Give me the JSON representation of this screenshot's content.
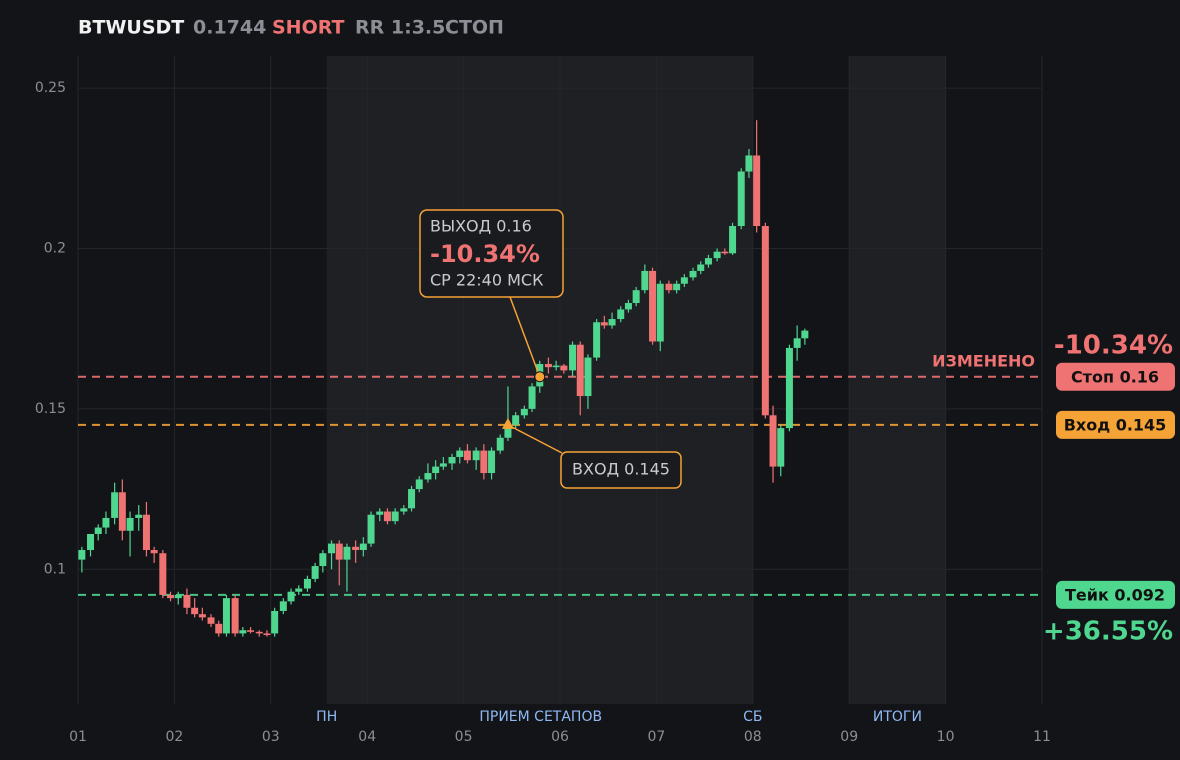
{
  "header": {
    "symbol": "BTWUSDT",
    "price": "0.1744",
    "side": "SHORT",
    "rr": "RR 1:3.5",
    "status": "СТОП"
  },
  "chart_data": {
    "type": "candlestick",
    "xlim": [
      1,
      11
    ],
    "ylim": [
      0.058,
      0.26
    ],
    "xticks": [
      {
        "value": 1,
        "label": "01"
      },
      {
        "value": 2,
        "label": "02"
      },
      {
        "value": 3,
        "label": "03"
      },
      {
        "value": 4,
        "label": "04"
      },
      {
        "value": 5,
        "label": "05"
      },
      {
        "value": 6,
        "label": "06"
      },
      {
        "value": 7,
        "label": "07"
      },
      {
        "value": 8,
        "label": "08"
      },
      {
        "value": 9,
        "label": "09"
      },
      {
        "value": 10,
        "label": "10"
      },
      {
        "value": 11,
        "label": "11"
      }
    ],
    "yticks": [
      0.1,
      0.15,
      0.2,
      0.25
    ],
    "grid": true,
    "up_color": "#4fd68f",
    "down_color": "#f07373",
    "regions": [
      {
        "from": 3.58,
        "to": 8
      },
      {
        "from": 9,
        "to": 10
      }
    ],
    "sessions": [
      {
        "x": 3.58,
        "label": "ПН"
      },
      {
        "x": 5.8,
        "label": "ПРИЕМ СЕТАПОВ"
      },
      {
        "x": 8,
        "label": "СБ"
      },
      {
        "x": 9.5,
        "label": "ИТОГИ"
      }
    ],
    "levels": [
      {
        "value": 0.16,
        "label": "Стоп 0.16",
        "color": "#f07373",
        "note": "ИЗМЕНЕНО",
        "pct": "-10.34%"
      },
      {
        "value": 0.145,
        "label": "Вход 0.145",
        "color": "#f5a236"
      },
      {
        "value": 0.092,
        "label": "Тейк 0.092",
        "color": "#4fd68f",
        "pct": "+36.55%"
      }
    ],
    "entry": {
      "x": 5.46,
      "y": 0.145,
      "label": "ВХОД 0.145"
    },
    "exit": {
      "x": 5.79,
      "y": 0.16,
      "label": "ВЫХОД 0.16",
      "pct": "-10.34%",
      "time": "СР 22:40 МСК"
    },
    "candles": [
      {
        "x": 1.04,
        "o": 0.103,
        "h": 0.107,
        "l": 0.099,
        "c": 0.106
      },
      {
        "x": 1.13,
        "o": 0.106,
        "h": 0.111,
        "l": 0.104,
        "c": 0.111
      },
      {
        "x": 1.21,
        "o": 0.111,
        "h": 0.114,
        "l": 0.109,
        "c": 0.113
      },
      {
        "x": 1.29,
        "o": 0.113,
        "h": 0.118,
        "l": 0.111,
        "c": 0.116
      },
      {
        "x": 1.38,
        "o": 0.116,
        "h": 0.127,
        "l": 0.114,
        "c": 0.124
      },
      {
        "x": 1.46,
        "o": 0.124,
        "h": 0.128,
        "l": 0.109,
        "c": 0.112
      },
      {
        "x": 1.54,
        "o": 0.112,
        "h": 0.118,
        "l": 0.104,
        "c": 0.116
      },
      {
        "x": 1.63,
        "o": 0.116,
        "h": 0.12,
        "l": 0.112,
        "c": 0.117
      },
      {
        "x": 1.71,
        "o": 0.117,
        "h": 0.121,
        "l": 0.104,
        "c": 0.106
      },
      {
        "x": 1.79,
        "o": 0.106,
        "h": 0.107,
        "l": 0.102,
        "c": 0.105
      },
      {
        "x": 1.88,
        "o": 0.105,
        "h": 0.106,
        "l": 0.091,
        "c": 0.092
      },
      {
        "x": 1.96,
        "o": 0.092,
        "h": 0.093,
        "l": 0.09,
        "c": 0.091
      },
      {
        "x": 2.04,
        "o": 0.091,
        "h": 0.093,
        "l": 0.089,
        "c": 0.092
      },
      {
        "x": 2.13,
        "o": 0.092,
        "h": 0.094,
        "l": 0.086,
        "c": 0.088
      },
      {
        "x": 2.21,
        "o": 0.088,
        "h": 0.091,
        "l": 0.085,
        "c": 0.086
      },
      {
        "x": 2.29,
        "o": 0.086,
        "h": 0.088,
        "l": 0.084,
        "c": 0.085
      },
      {
        "x": 2.38,
        "o": 0.085,
        "h": 0.086,
        "l": 0.082,
        "c": 0.083
      },
      {
        "x": 2.46,
        "o": 0.083,
        "h": 0.084,
        "l": 0.079,
        "c": 0.08
      },
      {
        "x": 2.54,
        "o": 0.08,
        "h": 0.092,
        "l": 0.079,
        "c": 0.091
      },
      {
        "x": 2.63,
        "o": 0.091,
        "h": 0.092,
        "l": 0.079,
        "c": 0.08
      },
      {
        "x": 2.71,
        "o": 0.08,
        "h": 0.082,
        "l": 0.079,
        "c": 0.081
      },
      {
        "x": 2.79,
        "o": 0.081,
        "h": 0.082,
        "l": 0.08,
        "c": 0.0805
      },
      {
        "x": 2.88,
        "o": 0.0805,
        "h": 0.081,
        "l": 0.079,
        "c": 0.08
      },
      {
        "x": 2.96,
        "o": 0.08,
        "h": 0.081,
        "l": 0.079,
        "c": 0.0795
      },
      {
        "x": 3.04,
        "o": 0.08,
        "h": 0.088,
        "l": 0.079,
        "c": 0.087
      },
      {
        "x": 3.13,
        "o": 0.087,
        "h": 0.091,
        "l": 0.086,
        "c": 0.09
      },
      {
        "x": 3.21,
        "o": 0.09,
        "h": 0.094,
        "l": 0.089,
        "c": 0.093
      },
      {
        "x": 3.29,
        "o": 0.093,
        "h": 0.095,
        "l": 0.092,
        "c": 0.094
      },
      {
        "x": 3.38,
        "o": 0.094,
        "h": 0.098,
        "l": 0.093,
        "c": 0.097
      },
      {
        "x": 3.46,
        "o": 0.097,
        "h": 0.102,
        "l": 0.096,
        "c": 0.101
      },
      {
        "x": 3.54,
        "o": 0.101,
        "h": 0.106,
        "l": 0.099,
        "c": 0.105
      },
      {
        "x": 3.63,
        "o": 0.105,
        "h": 0.109,
        "l": 0.1,
        "c": 0.108
      },
      {
        "x": 3.71,
        "o": 0.108,
        "h": 0.109,
        "l": 0.095,
        "c": 0.103
      },
      {
        "x": 3.79,
        "o": 0.103,
        "h": 0.108,
        "l": 0.093,
        "c": 0.107
      },
      {
        "x": 3.88,
        "o": 0.107,
        "h": 0.109,
        "l": 0.102,
        "c": 0.106
      },
      {
        "x": 3.96,
        "o": 0.106,
        "h": 0.11,
        "l": 0.104,
        "c": 0.108
      },
      {
        "x": 4.04,
        "o": 0.108,
        "h": 0.118,
        "l": 0.107,
        "c": 0.117
      },
      {
        "x": 4.13,
        "o": 0.117,
        "h": 0.119,
        "l": 0.115,
        "c": 0.118
      },
      {
        "x": 4.21,
        "o": 0.118,
        "h": 0.119,
        "l": 0.114,
        "c": 0.115
      },
      {
        "x": 4.29,
        "o": 0.115,
        "h": 0.119,
        "l": 0.114,
        "c": 0.118
      },
      {
        "x": 4.38,
        "o": 0.118,
        "h": 0.12,
        "l": 0.117,
        "c": 0.119
      },
      {
        "x": 4.46,
        "o": 0.119,
        "h": 0.126,
        "l": 0.118,
        "c": 0.125
      },
      {
        "x": 4.54,
        "o": 0.125,
        "h": 0.129,
        "l": 0.124,
        "c": 0.128
      },
      {
        "x": 4.63,
        "o": 0.128,
        "h": 0.133,
        "l": 0.127,
        "c": 0.13
      },
      {
        "x": 4.71,
        "o": 0.13,
        "h": 0.134,
        "l": 0.128,
        "c": 0.132
      },
      {
        "x": 4.79,
        "o": 0.132,
        "h": 0.135,
        "l": 0.131,
        "c": 0.133
      },
      {
        "x": 4.88,
        "o": 0.133,
        "h": 0.136,
        "l": 0.131,
        "c": 0.135
      },
      {
        "x": 4.96,
        "o": 0.135,
        "h": 0.138,
        "l": 0.133,
        "c": 0.137
      },
      {
        "x": 5.04,
        "o": 0.137,
        "h": 0.139,
        "l": 0.133,
        "c": 0.134
      },
      {
        "x": 5.13,
        "o": 0.134,
        "h": 0.138,
        "l": 0.131,
        "c": 0.137
      },
      {
        "x": 5.21,
        "o": 0.137,
        "h": 0.139,
        "l": 0.128,
        "c": 0.13
      },
      {
        "x": 5.29,
        "o": 0.13,
        "h": 0.138,
        "l": 0.128,
        "c": 0.137
      },
      {
        "x": 5.38,
        "o": 0.137,
        "h": 0.142,
        "l": 0.136,
        "c": 0.141
      },
      {
        "x": 5.46,
        "o": 0.141,
        "h": 0.157,
        "l": 0.14,
        "c": 0.145
      },
      {
        "x": 5.54,
        "o": 0.145,
        "h": 0.149,
        "l": 0.144,
        "c": 0.148
      },
      {
        "x": 5.63,
        "o": 0.148,
        "h": 0.151,
        "l": 0.147,
        "c": 0.15
      },
      {
        "x": 5.71,
        "o": 0.15,
        "h": 0.158,
        "l": 0.149,
        "c": 0.157
      },
      {
        "x": 5.79,
        "o": 0.157,
        "h": 0.165,
        "l": 0.155,
        "c": 0.164
      },
      {
        "x": 5.88,
        "o": 0.164,
        "h": 0.166,
        "l": 0.161,
        "c": 0.163
      },
      {
        "x": 5.96,
        "o": 0.163,
        "h": 0.165,
        "l": 0.162,
        "c": 0.1635
      },
      {
        "x": 6.04,
        "o": 0.1635,
        "h": 0.164,
        "l": 0.161,
        "c": 0.162
      },
      {
        "x": 6.13,
        "o": 0.162,
        "h": 0.171,
        "l": 0.16,
        "c": 0.17
      },
      {
        "x": 6.21,
        "o": 0.17,
        "h": 0.171,
        "l": 0.148,
        "c": 0.154
      },
      {
        "x": 6.29,
        "o": 0.154,
        "h": 0.167,
        "l": 0.15,
        "c": 0.166
      },
      {
        "x": 6.38,
        "o": 0.166,
        "h": 0.178,
        "l": 0.165,
        "c": 0.177
      },
      {
        "x": 6.46,
        "o": 0.177,
        "h": 0.179,
        "l": 0.175,
        "c": 0.176
      },
      {
        "x": 6.54,
        "o": 0.176,
        "h": 0.18,
        "l": 0.175,
        "c": 0.178
      },
      {
        "x": 6.63,
        "o": 0.178,
        "h": 0.182,
        "l": 0.177,
        "c": 0.181
      },
      {
        "x": 6.71,
        "o": 0.181,
        "h": 0.184,
        "l": 0.18,
        "c": 0.183
      },
      {
        "x": 6.79,
        "o": 0.183,
        "h": 0.188,
        "l": 0.182,
        "c": 0.187
      },
      {
        "x": 6.88,
        "o": 0.187,
        "h": 0.195,
        "l": 0.186,
        "c": 0.193
      },
      {
        "x": 6.96,
        "o": 0.193,
        "h": 0.194,
        "l": 0.17,
        "c": 0.171
      },
      {
        "x": 7.04,
        "o": 0.171,
        "h": 0.19,
        "l": 0.168,
        "c": 0.189
      },
      {
        "x": 7.13,
        "o": 0.189,
        "h": 0.19,
        "l": 0.186,
        "c": 0.187
      },
      {
        "x": 7.21,
        "o": 0.187,
        "h": 0.19,
        "l": 0.186,
        "c": 0.189
      },
      {
        "x": 7.29,
        "o": 0.189,
        "h": 0.192,
        "l": 0.188,
        "c": 0.191
      },
      {
        "x": 7.38,
        "o": 0.191,
        "h": 0.194,
        "l": 0.19,
        "c": 0.193
      },
      {
        "x": 7.46,
        "o": 0.193,
        "h": 0.196,
        "l": 0.192,
        "c": 0.195
      },
      {
        "x": 7.54,
        "o": 0.195,
        "h": 0.198,
        "l": 0.194,
        "c": 0.197
      },
      {
        "x": 7.63,
        "o": 0.197,
        "h": 0.2,
        "l": 0.196,
        "c": 0.199
      },
      {
        "x": 7.71,
        "o": 0.199,
        "h": 0.2,
        "l": 0.198,
        "c": 0.1985
      },
      {
        "x": 7.79,
        "o": 0.1985,
        "h": 0.208,
        "l": 0.198,
        "c": 0.207
      },
      {
        "x": 7.88,
        "o": 0.207,
        "h": 0.225,
        "l": 0.206,
        "c": 0.224
      },
      {
        "x": 7.96,
        "o": 0.224,
        "h": 0.231,
        "l": 0.222,
        "c": 0.229
      },
      {
        "x": 8.04,
        "o": 0.229,
        "h": 0.24,
        "l": 0.205,
        "c": 0.207
      },
      {
        "x": 8.13,
        "o": 0.207,
        "h": 0.208,
        "l": 0.147,
        "c": 0.148
      },
      {
        "x": 8.21,
        "o": 0.148,
        "h": 0.151,
        "l": 0.127,
        "c": 0.132
      },
      {
        "x": 8.29,
        "o": 0.132,
        "h": 0.145,
        "l": 0.129,
        "c": 0.144
      },
      {
        "x": 8.38,
        "o": 0.144,
        "h": 0.17,
        "l": 0.143,
        "c": 0.169
      },
      {
        "x": 8.46,
        "o": 0.169,
        "h": 0.176,
        "l": 0.165,
        "c": 0.172
      },
      {
        "x": 8.54,
        "o": 0.172,
        "h": 0.175,
        "l": 0.17,
        "c": 0.1744
      }
    ]
  }
}
